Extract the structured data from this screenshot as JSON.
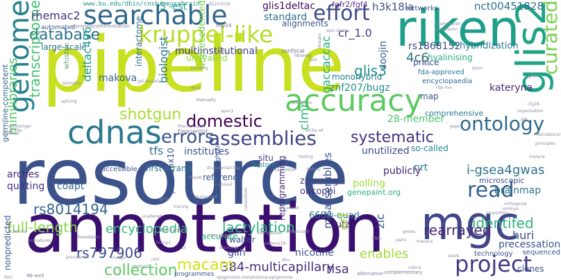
{
  "words": [
    {
      "text": "resource",
      "color": "#3b528b"
    },
    {
      "text": "annotation",
      "color": "#3b0f70"
    },
    {
      "text": "pipeline",
      "color": "#c8e020"
    },
    {
      "text": "riken",
      "color": "#1f9e89"
    },
    {
      "text": "searchable",
      "color": "#31688e"
    },
    {
      "text": "genome",
      "color": "#26828e"
    },
    {
      "text": "cdnas",
      "color": "#2a788e"
    },
    {
      "text": "accuracy",
      "color": "#5ec962"
    },
    {
      "text": "glis2",
      "color": "#20a386"
    },
    {
      "text": "mgc",
      "color": "#404688"
    },
    {
      "text": "database",
      "color": "#2d708e"
    },
    {
      "text": "kruppel-like",
      "color": "#b5de2b"
    },
    {
      "text": "effort",
      "color": "#3e4a89"
    },
    {
      "text": "project",
      "color": "#443983"
    },
    {
      "text": "assemblies",
      "color": "#414487"
    },
    {
      "text": "ontology",
      "color": "#31688e"
    },
    {
      "text": "errors",
      "color": "#3b528b"
    },
    {
      "text": "domestic",
      "color": "#440154"
    },
    {
      "text": "read",
      "color": "#355f8d"
    },
    {
      "text": "curated",
      "color": "#7ad151"
    },
    {
      "text": "full-length",
      "color": "#84d44b"
    },
    {
      "text": "encyclopedia",
      "color": "#35b779"
    },
    {
      "text": "shotgun",
      "color": "#aadc32"
    },
    {
      "text": "glis3",
      "color": "#21918c"
    },
    {
      "text": "identifed",
      "color": "#2db27d"
    },
    {
      "text": "rearrayed",
      "color": "#482878"
    },
    {
      "text": "lactylation",
      "color": "#29af7f"
    },
    {
      "text": "collection",
      "color": "#5ec962"
    },
    {
      "text": "transcriptome",
      "color": "#44bf70"
    },
    {
      "text": "minilibraries",
      "color": "#52c569"
    },
    {
      "text": "systematic",
      "color": "#46327e"
    },
    {
      "text": "i-gsea4gwas",
      "color": "#2c728e"
    },
    {
      "text": "rs8014194",
      "color": "#33638d"
    },
    {
      "text": "384-multicapillary",
      "color": "#472d7b"
    },
    {
      "text": "rs797906",
      "color": "#3e4c8a"
    },
    {
      "text": "macam",
      "color": "#d2e21b"
    },
    {
      "text": "enables",
      "color": "#9fda3a"
    },
    {
      "text": "clmn",
      "color": "#35b779"
    },
    {
      "text": "biologist",
      "color": "#2a788e"
    },
    {
      "text": "deltac496",
      "color": "#1f9a8a"
    },
    {
      "text": "rhemac2",
      "color": "#46327e"
    },
    {
      "text": "4c6",
      "color": "#30697e"
    },
    {
      "text": "cr_1.0",
      "color": "#433e85"
    },
    {
      "text": "glis1deltac",
      "color": "#46085c"
    },
    {
      "text": "h3k18la",
      "color": "#3b528b"
    },
    {
      "text": "nct00451828",
      "color": "#2e6f8e"
    },
    {
      "text": "fgfr2/fgf4",
      "color": "#5c2d92"
    },
    {
      "text": "5'-est",
      "color": "#1fa187"
    },
    {
      "text": "www.bu.edu/dbin/cnsb/mousebrain",
      "color": "#21918c"
    },
    {
      "text": "illumine",
      "color": "#a0a0c0"
    },
    {
      "text": "networks",
      "color": "#3b528b"
    },
    {
      "text": "standard",
      "color": "#2e6e8e"
    },
    {
      "text": "alignments",
      "color": "#39568c"
    },
    {
      "text": "rs1868152",
      "color": "#3e4a89"
    },
    {
      "text": "hybridization",
      "color": "#2a788e"
    },
    {
      "text": "multiinstitutional",
      "color": "#414487"
    },
    {
      "text": "large-scale",
      "color": "#2c718e"
    },
    {
      "text": "unrivalled",
      "color": "#8fd744"
    },
    {
      "text": "hyalinising",
      "color": "#28ae80"
    },
    {
      "text": "prince",
      "color": "#3a548c"
    },
    {
      "text": "soojin",
      "color": "#365c8d"
    },
    {
      "text": "gaccaccac",
      "color": "#26ad81"
    },
    {
      "text": "znf207/bugz",
      "color": "#21908d"
    },
    {
      "text": "monohybrid",
      "color": "#287d8e"
    },
    {
      "text": "kateryna",
      "color": "#482878"
    },
    {
      "text": "unprecedented",
      "color": "#7ad151"
    },
    {
      "text": "interactome",
      "color": "#2f6c8e"
    },
    {
      "text": "makova",
      "color": "#31688e"
    },
    {
      "text": "map",
      "color": "#3b528b"
    },
    {
      "text": "encyclopaedia",
      "color": "#31688e"
    },
    {
      "text": "fda-approved",
      "color": "#2a788e"
    },
    {
      "text": "28-member",
      "color": "#4ec36b"
    },
    {
      "text": "unutilized",
      "color": "#3e4989"
    },
    {
      "text": "so-called",
      "color": "#23898e"
    },
    {
      "text": "reference",
      "color": "#3b528b"
    },
    {
      "text": "comprehensive",
      "color": "#2a788e"
    },
    {
      "text": "tfs",
      "color": "#2d708e"
    },
    {
      "text": "institutes",
      "color": "#3b528b"
    },
    {
      "text": "situ",
      "color": "#424086"
    },
    {
      "text": "fantom",
      "color": "#25858e"
    },
    {
      "text": "first-strand",
      "color": "#2a788e"
    },
    {
      "text": "accessible",
      "color": "#3b528b"
    },
    {
      "text": "arches",
      "color": "#482576"
    },
    {
      "text": "quitting",
      "color": "#46307e"
    },
    {
      "text": "coapt",
      "color": "#31688e"
    },
    {
      "text": "p=4.36x10",
      "color": "#3b528b"
    },
    {
      "text": "zooming",
      "color": "#404588"
    },
    {
      "text": "oncoppi",
      "color": "#46337f"
    },
    {
      "text": "polling",
      "color": "#9fda3a"
    },
    {
      "text": "genepaint.org",
      "color": "#27ad81"
    },
    {
      "text": "publicly",
      "color": "#482475"
    },
    {
      "text": "nrt",
      "color": "#2a788e"
    },
    {
      "text": "brainmap",
      "color": "#2a768e"
    },
    {
      "text": "microscopic",
      "color": "#3b528b"
    },
    {
      "text": "misassemblies",
      "color": "#3b528b"
    },
    {
      "text": "reprogramming",
      "color": "#482677"
    },
    {
      "text": "660w-quad",
      "color": "#2c728e"
    },
    {
      "text": "lutz",
      "color": "#46327e"
    },
    {
      "text": "orf",
      "color": "#a8db34"
    },
    {
      "text": "zic",
      "color": "#3b528b"
    },
    {
      "text": "walter",
      "color": "#3b528b"
    },
    {
      "text": "accurate",
      "color": "#2db27d"
    },
    {
      "text": "glih",
      "color": "#414487"
    },
    {
      "text": "huri",
      "color": "#3b528b"
    },
    {
      "text": "precessation",
      "color": "#3b528b"
    },
    {
      "text": "nicotine",
      "color": "#3b528b"
    },
    {
      "text": "risa",
      "color": "#46307e"
    },
    {
      "text": "clones",
      "color": "#3b528b"
    },
    {
      "text": "nonpredicted",
      "color": "#3b528b"
    },
    {
      "text": "germline-competent",
      "color": "#31688e"
    },
    {
      "text": "programmes",
      "color": "#3b528b"
    },
    {
      "text": "technology",
      "color": "#3b528b"
    },
    {
      "text": "sequenced",
      "color": "#3b528b"
    },
    {
      "text": "mg/24",
      "color": "#6a6a8a"
    },
    {
      "text": "automated",
      "color": "#3b528b"
    },
    {
      "text": "biometric",
      "color": "#8a8aa0"
    },
    {
      "text": "whistlin",
      "color": "#60a080"
    },
    {
      "text": "manually",
      "color": "#7a7a9a"
    },
    {
      "text": "libraries",
      "color": "#7a7a9a"
    },
    {
      "text": "confocal",
      "color": "#6a6a8a"
    },
    {
      "text": "health",
      "color": "#8a8aa0"
    },
    {
      "text": "tool",
      "color": "#8a8aa0"
    },
    {
      "text": "illicit",
      "color": "#8a8aa0"
    },
    {
      "text": "panning",
      "color": "#8a8aa0"
    },
    {
      "text": "frequentist",
      "color": "#7a7a9a"
    },
    {
      "text": "thermostable",
      "color": "#8a8aa0"
    },
    {
      "text": "21st-century",
      "color": "#7a7a9a"
    },
    {
      "text": "foundation",
      "color": "#7a7a9a"
    },
    {
      "text": "alternative",
      "color": "#7a7a9a"
    },
    {
      "text": "complementary",
      "color": "#7a7a9a"
    },
    {
      "text": "end-expired",
      "color": "#8a8aa0"
    },
    {
      "text": "celera",
      "color": "#8a8aa0"
    },
    {
      "text": "96-well",
      "color": "#7a7a9a"
    },
    {
      "text": "gudmap",
      "color": "#8a8aa0"
    },
    {
      "text": "pluripotent",
      "color": "#8a8aa0"
    },
    {
      "text": "proteome",
      "color": "#8a8aa0"
    },
    {
      "text": "national",
      "color": "#8a8aa0"
    },
    {
      "text": "high-throughput",
      "color": "#3b528b"
    },
    {
      "text": "orthogonal",
      "color": "#8a8aa0"
    },
    {
      "text": "embryo",
      "color": "#8a8aa0"
    },
    {
      "text": "proportion",
      "color": "#8a8aa0"
    },
    {
      "text": "international",
      "color": "#8a8aa0"
    },
    {
      "text": "principles",
      "color": "#8a8aa0"
    },
    {
      "text": "organization",
      "color": "#8a8aa0"
    },
    {
      "text": "messenger",
      "color": "#8a8aa0"
    },
    {
      "text": "splicing",
      "color": "#8a8aa0"
    },
    {
      "text": "gel-based",
      "color": "#8a8aa0"
    },
    {
      "text": "mammalian",
      "color": "#8a8aa0"
    },
    {
      "text": "submission",
      "color": "#8a8aa0"
    },
    {
      "text": "epic-dram",
      "color": "#8a8aa0"
    },
    {
      "text": "fasting",
      "color": "#8a8aa0"
    },
    {
      "text": "macaca",
      "color": "#8a8aa0"
    },
    {
      "text": "pairs",
      "color": "#8a8aa0"
    },
    {
      "text": "chosen",
      "color": "#8a8aa0"
    },
    {
      "text": "discerned",
      "color": "#8a8aa0"
    },
    {
      "text": "consortium",
      "color": "#8a8aa0"
    },
    {
      "text": "subunits",
      "color": "#8a8aa0"
    },
    {
      "text": "ubiquitous",
      "color": "#8a8aa0"
    },
    {
      "text": "genes",
      "color": "#8a8aa0"
    },
    {
      "text": "loci",
      "color": "#8a8aa0"
    },
    {
      "text": "essrb",
      "color": "#8a8aa0"
    },
    {
      "text": "protocol",
      "color": "#8a8aa0"
    },
    {
      "text": "gcta",
      "color": "#8a8aa0"
    },
    {
      "text": "images",
      "color": "#8a8aa0"
    },
    {
      "text": "stemness/differentiation",
      "color": "#8a8aa0"
    },
    {
      "text": "all-by-all",
      "color": "#8a8aa0"
    },
    {
      "text": "crispr/cas9",
      "color": "#8a8aa0"
    },
    {
      "text": "apoc1",
      "color": "#8a8aa0"
    },
    {
      "text": "kidney",
      "color": "#8a8aa0"
    },
    {
      "text": "51.8-kda",
      "color": "#8a8aa0"
    },
    {
      "text": "palbociclib",
      "color": "#8a8aa0"
    },
    {
      "text": "unaltered",
      "color": "#8a8aa0"
    },
    {
      "text": "epigenome-metabolome-epigenome",
      "color": "#8a8aa0"
    },
    {
      "text": "drug-containing",
      "color": "#8a8aa0"
    },
    {
      "text": "sourcing",
      "color": "#8a8aa0"
    },
    {
      "text": "tyler",
      "color": "#8a8aa0"
    },
    {
      "text": "nfkb",
      "color": "#8a8aa0"
    },
    {
      "text": "gaps",
      "color": "#8a8aa0"
    },
    {
      "text": "malaria",
      "color": "#8a8aa0"
    },
    {
      "text": "hnrnp1",
      "color": "#8a8aa0"
    },
    {
      "text": "rs4483939",
      "color": "#8a8aa0"
    },
    {
      "text": "prevalence",
      "color": "#8a8aa0"
    },
    {
      "text": "dhu",
      "color": "#8a8aa0"
    },
    {
      "text": "rbp-rna",
      "color": "#8a8aa0"
    },
    {
      "text": "cfg28",
      "color": "#8a8aa0"
    },
    {
      "text": "ipscs",
      "color": "#8a8aa0"
    },
    {
      "text": "hqa",
      "color": "#8a8aa0"
    },
    {
      "text": "ptk",
      "color": "#8a8aa0"
    },
    {
      "text": "hsqa8",
      "color": "#8a8aa0"
    },
    {
      "text": "n50",
      "color": "#8a8aa0"
    },
    {
      "text": "pl",
      "color": "#8a8aa0"
    },
    {
      "text": "procedures",
      "color": "#8a8aa0"
    },
    {
      "text": "tracing",
      "color": "#8a8aa0"
    }
  ]
}
